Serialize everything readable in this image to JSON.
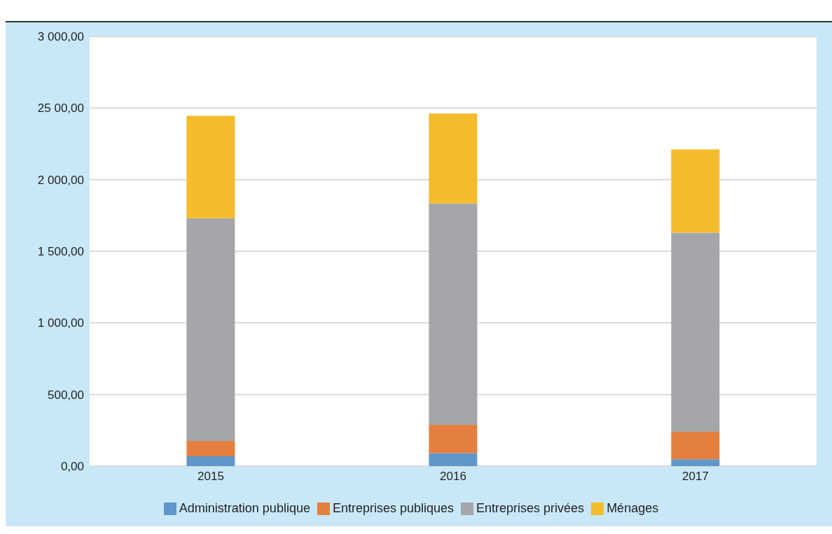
{
  "chart_data": {
    "type": "bar",
    "stacked": true,
    "categories": [
      "2015",
      "2016",
      "2017"
    ],
    "series": [
      {
        "name": "Administration publique",
        "color": "#5f97cb",
        "values": [
          69,
          91,
          48
        ]
      },
      {
        "name": "Entreprises publiques",
        "color": "#e47f3f",
        "values": [
          107,
          197,
          192
        ]
      },
      {
        "name": "Entreprises privées",
        "color": "#a5a6a9",
        "values": [
          1555,
          1545,
          1390
        ]
      },
      {
        "name": "Ménages",
        "color": "#f4bb2c",
        "values": [
          714,
          628,
          581
        ]
      }
    ],
    "ylim": [
      0,
      3000
    ],
    "yticks": [
      {
        "value": 0,
        "label": "0,00"
      },
      {
        "value": 500,
        "label": "500,00"
      },
      {
        "value": 1000,
        "label": "1 000,00"
      },
      {
        "value": 1500,
        "label": "1 500,00"
      },
      {
        "value": 2000,
        "label": "2 000,00"
      },
      {
        "value": 2500,
        "label": "25 00,00"
      },
      {
        "value": 3000,
        "label": "3 000,00"
      }
    ],
    "grid": "y",
    "legend": "bottom"
  }
}
